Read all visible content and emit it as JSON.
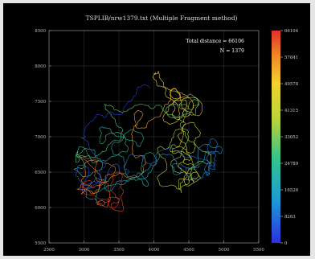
{
  "chart_data": {
    "type": "line",
    "title": "TSPLIB/nrw1379.txt (Multiple Fragment method)",
    "xlabel": "",
    "ylabel": "",
    "xlim": [
      2500,
      5500
    ],
    "ylim": [
      5500,
      8500
    ],
    "x_ticks": [
      "2500",
      "3000",
      "3500",
      "4000",
      "4500",
      "5000",
      "5500"
    ],
    "y_ticks": [
      "5500",
      "6000",
      "6500",
      "7000",
      "7500",
      "8000",
      "8500"
    ],
    "grid": true,
    "annotations": [
      "Total distance = 66106",
      "N = 1379"
    ],
    "colorbar": {
      "ticks": [
        "66104",
        "57841",
        "49578",
        "41315",
        "33052",
        "24789",
        "16526",
        "8263",
        "0"
      ],
      "range": [
        0,
        66104
      ]
    },
    "region_outline": [
      [
        3500,
        7600
      ],
      [
        3350,
        7450
      ],
      [
        3050,
        7550
      ],
      [
        2900,
        7400
      ],
      [
        2870,
        7150
      ],
      [
        2950,
        6900
      ],
      [
        2850,
        6700
      ],
      [
        2830,
        6400
      ],
      [
        2920,
        6200
      ],
      [
        3150,
        6050
      ],
      [
        3400,
        5950
      ],
      [
        3700,
        5900
      ],
      [
        3950,
        6000
      ],
      [
        4150,
        6100
      ],
      [
        4400,
        6200
      ],
      [
        4650,
        6350
      ],
      [
        4900,
        6550
      ],
      [
        5050,
        6800
      ],
      [
        5200,
        7000
      ],
      [
        5250,
        7300
      ],
      [
        5150,
        7600
      ],
      [
        5200,
        7900
      ],
      [
        5100,
        8150
      ],
      [
        4850,
        8250
      ],
      [
        4600,
        8200
      ],
      [
        4350,
        8100
      ],
      [
        4150,
        8000
      ],
      [
        3950,
        7850
      ],
      [
        3750,
        7700
      ]
    ],
    "colors": {
      "low": "#2a3fd6",
      "high": "#d63a2a"
    }
  }
}
